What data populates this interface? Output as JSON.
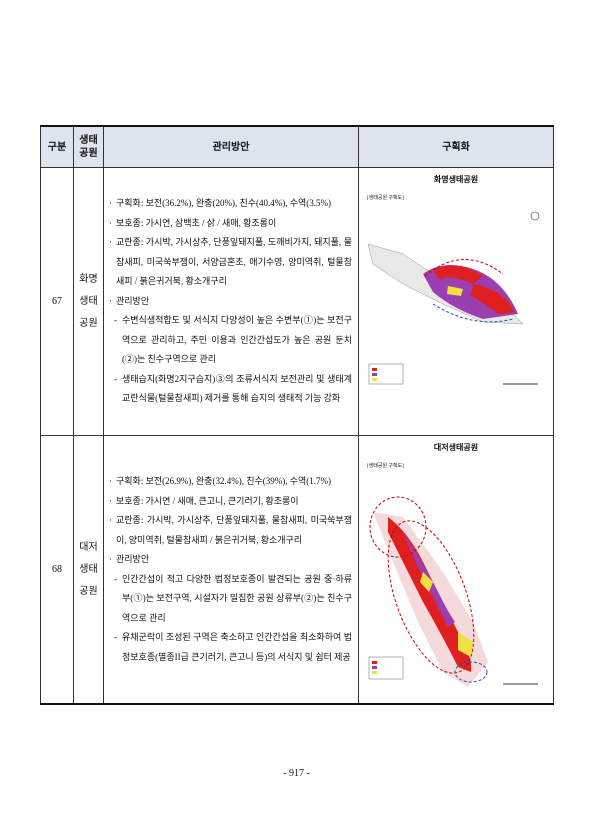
{
  "table": {
    "headers": [
      "구분",
      "생태\n공원",
      "관리방안",
      "구획화"
    ],
    "rows": [
      {
        "no": "67",
        "park": [
          "화명",
          "생태",
          "공원"
        ],
        "map_title": "화명생태공원",
        "map_caption": "[생태공원 구획도]",
        "items": [
          {
            "text": "구획화: 보전(36.2%), 완충(20%), 친수(40.4%), 수역(3.5%)",
            "sub": false
          },
          {
            "text": "보호종: 가시연, 삼백초 / 삵 / 새매, 황조롱이",
            "sub": false
          },
          {
            "text": "교란종: 가시박, 가시상추, 단풍잎돼지풀, 도깨비가지, 돼지풀, 물참새피, 미국쑥부쟁이, 서양금혼초, 애기수영, 양미역취, 털물참새피 / 붉은귀거북, 황소개구리",
            "sub": false
          },
          {
            "text": "관리방안",
            "sub": false
          },
          {
            "text": "수변식생적합도 및 서식지 다양성이 높은 수변부(①)는 보전구역으로 관리하고, 주민 이용과 인간간섭도가 높은 공원 둔치(②)는 친수구역으로 관리",
            "sub": true
          },
          {
            "text": "생태습지(화명2지구습지)③의 조류서식지 보전관리 및 생태계교란식물(털물참새피) 제거를 통해 습지의 생태적 기능 강화",
            "sub": true
          }
        ]
      },
      {
        "no": "68",
        "park": [
          "대저",
          "생태",
          "공원"
        ],
        "map_title": "대저생태공원",
        "map_caption": "[생태공원 구획도]",
        "items": [
          {
            "text": "구획화: 보전(26.9%), 완충(32.4%), 친수(39%), 수역(1.7%)",
            "sub": false
          },
          {
            "text": "보호종: 가시연 / 새매, 큰고니, 큰기러기, 황조롱이",
            "sub": false
          },
          {
            "text": "교란종: 가시박, 가시상추, 단풍잎돼지풀, 물참새피, 미국쑥부쟁이, 양미역취, 털물참새피 / 붉은귀거북, 황소개구리",
            "sub": false
          },
          {
            "text": "관리방안",
            "sub": false
          },
          {
            "text": "인간간섭이 적고 다양한 법정보호종이 발견되는 공원 중·하류부(①)는 보전구역, 시설자가 밀집한 공원 상류부(②)는 친수구역으로 관리",
            "sub": true
          },
          {
            "text": "유채군락이 조성된 구역은 축소하고 인간간섭을 최소화하여 법정보호종(멸종II급 큰기러기, 큰고니 등)의 서식지 및 쉼터 제공",
            "sub": true
          }
        ]
      }
    ]
  },
  "page_number": "- 917 -"
}
